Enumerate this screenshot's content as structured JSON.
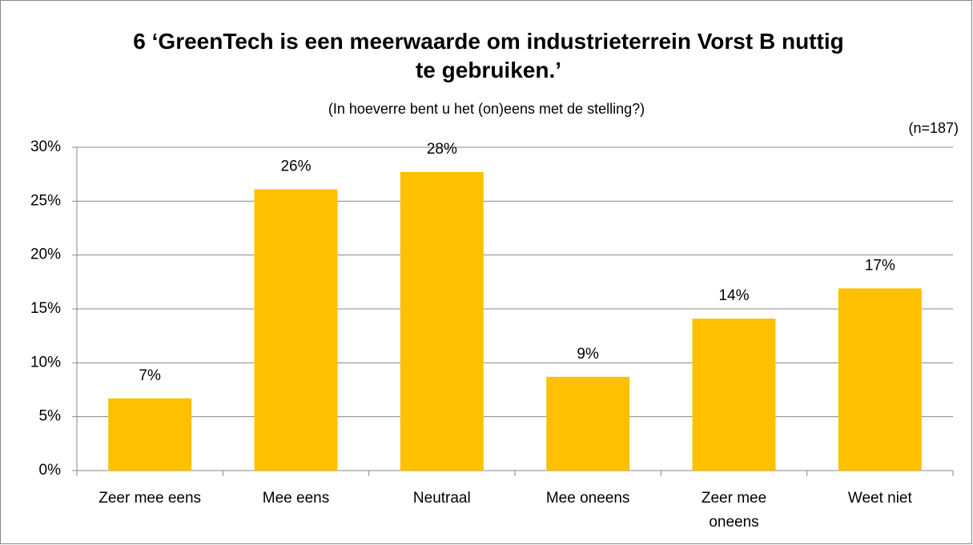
{
  "chart_data": {
    "type": "bar",
    "title": "6 ‘GreenTech is een meerwaarde om industrieterrein Vorst B nuttig te gebruiken.’",
    "subtitle": "(In hoeverre bent u het (on)eens met de stelling?)",
    "annotation": "(n=187)",
    "categories": [
      "Zeer mee eens",
      "Mee eens",
      "Neutraal",
      "Mee oneens",
      "Zeer mee oneens",
      "Weet niet"
    ],
    "values": [
      6.7,
      26.1,
      27.7,
      8.7,
      14.1,
      16.9
    ],
    "value_labels": [
      "7%",
      "26%",
      "28%",
      "9%",
      "14%",
      "17%"
    ],
    "color": "#ffc000",
    "ylim": [
      0,
      30
    ],
    "yticks": [
      {
        "value": 0,
        "label": "0%"
      },
      {
        "value": 5,
        "label": "5%"
      },
      {
        "value": 10,
        "label": "10%"
      },
      {
        "value": 15,
        "label": "15%"
      },
      {
        "value": 20,
        "label": "20%"
      },
      {
        "value": 25,
        "label": "25%"
      },
      {
        "value": 30,
        "label": "30%"
      }
    ],
    "grid": true
  }
}
